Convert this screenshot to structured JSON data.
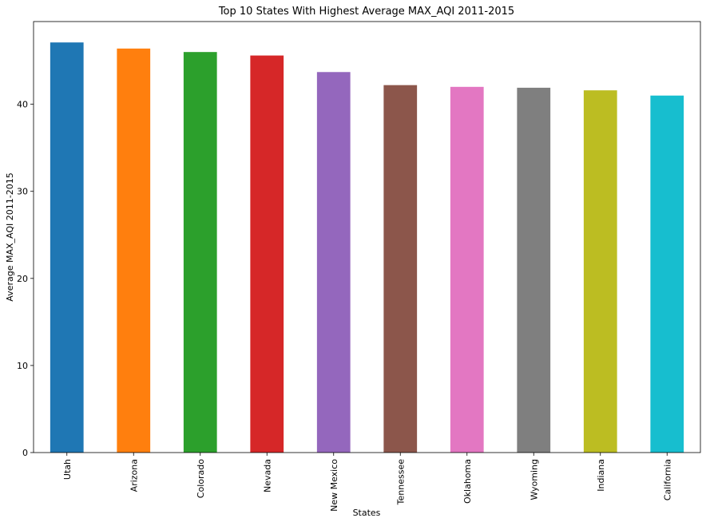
{
  "chart_data": {
    "type": "bar",
    "title": "Top 10 States With Highest Average MAX_AQI 2011-2015",
    "xlabel": "States",
    "ylabel": "Average MAX_AQI 2011-2015",
    "categories": [
      "Utah",
      "Arizona",
      "Colorado",
      "Nevada",
      "New Mexico",
      "Tennessee",
      "Oklahoma",
      "Wyoming",
      "Indiana",
      "California"
    ],
    "values": [
      47.1,
      46.4,
      46.0,
      45.6,
      43.7,
      42.2,
      42.0,
      41.9,
      41.6,
      41.0
    ],
    "colors": [
      "#1f77b4",
      "#ff7f0e",
      "#2ca02c",
      "#d62728",
      "#9467bd",
      "#8c564b",
      "#e377c2",
      "#7f7f7f",
      "#bcbd22",
      "#17becf"
    ],
    "ylim": [
      0,
      49.5
    ],
    "yticks": [
      0,
      10,
      20,
      30,
      40
    ],
    "grid": false,
    "legend": "none"
  }
}
